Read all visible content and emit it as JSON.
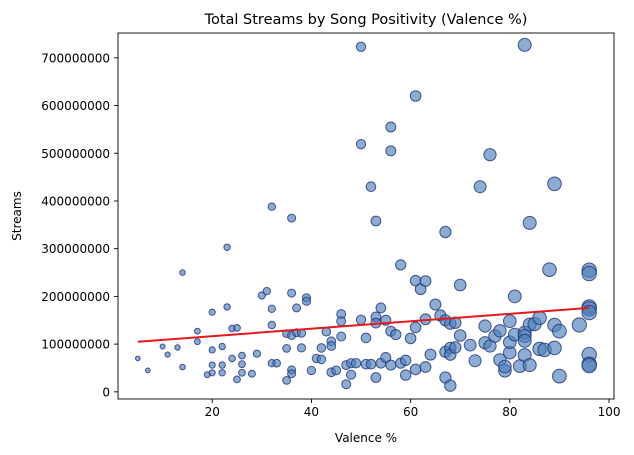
{
  "chart_data": {
    "type": "scatter",
    "title": "Total Streams by Song Positivity (Valence %)",
    "xlabel": "Valence %",
    "ylabel": "Streams",
    "xlim": [
      1,
      101
    ],
    "ylim": [
      -15000000,
      752000000
    ],
    "xticks": [
      20,
      40,
      60,
      80,
      100
    ],
    "xtick_labels": [
      "20",
      "40",
      "60",
      "80",
      "100"
    ],
    "yticks": [
      0,
      100000000,
      200000000,
      300000000,
      400000000,
      500000000,
      600000000,
      700000000
    ],
    "ytick_labels": [
      "0",
      "100000000",
      "200000000",
      "300000000",
      "400000000",
      "500000000",
      "600000000",
      "700000000"
    ],
    "grid": false,
    "legend": false,
    "colors": {
      "marker_fill": "#4f7fb8",
      "marker_edge": "#1f2f78",
      "trend_line": "#e31a1c"
    },
    "trend_line": {
      "x": [
        5,
        96
      ],
      "y": [
        105000000,
        176000000
      ]
    },
    "points": [
      {
        "x": 5,
        "y": 70000000
      },
      {
        "x": 7,
        "y": 45000000
      },
      {
        "x": 10,
        "y": 95000000
      },
      {
        "x": 11,
        "y": 78000000
      },
      {
        "x": 13,
        "y": 93000000
      },
      {
        "x": 14,
        "y": 250000000
      },
      {
        "x": 14,
        "y": 52000000
      },
      {
        "x": 17,
        "y": 127000000
      },
      {
        "x": 17,
        "y": 105000000
      },
      {
        "x": 19,
        "y": 36000000
      },
      {
        "x": 20,
        "y": 40000000
      },
      {
        "x": 20,
        "y": 167000000
      },
      {
        "x": 20,
        "y": 88000000
      },
      {
        "x": 20,
        "y": 56000000
      },
      {
        "x": 22,
        "y": 95000000
      },
      {
        "x": 22,
        "y": 56000000
      },
      {
        "x": 22,
        "y": 40000000
      },
      {
        "x": 23,
        "y": 178000000
      },
      {
        "x": 23,
        "y": 303000000
      },
      {
        "x": 24,
        "y": 133000000
      },
      {
        "x": 24,
        "y": 70000000
      },
      {
        "x": 25,
        "y": 26000000
      },
      {
        "x": 25,
        "y": 134000000
      },
      {
        "x": 26,
        "y": 76000000
      },
      {
        "x": 26,
        "y": 40000000
      },
      {
        "x": 26,
        "y": 58000000
      },
      {
        "x": 28,
        "y": 38000000
      },
      {
        "x": 29,
        "y": 80000000
      },
      {
        "x": 30,
        "y": 202000000
      },
      {
        "x": 31,
        "y": 211000000
      },
      {
        "x": 32,
        "y": 388000000
      },
      {
        "x": 32,
        "y": 174000000
      },
      {
        "x": 32,
        "y": 140000000
      },
      {
        "x": 32,
        "y": 60000000
      },
      {
        "x": 33,
        "y": 60000000
      },
      {
        "x": 35,
        "y": 24000000
      },
      {
        "x": 35,
        "y": 91000000
      },
      {
        "x": 35,
        "y": 122000000
      },
      {
        "x": 36,
        "y": 364000000
      },
      {
        "x": 36,
        "y": 207000000
      },
      {
        "x": 36,
        "y": 118000000
      },
      {
        "x": 36,
        "y": 46000000
      },
      {
        "x": 36,
        "y": 38000000
      },
      {
        "x": 37,
        "y": 176000000
      },
      {
        "x": 37,
        "y": 124000000
      },
      {
        "x": 38,
        "y": 123000000
      },
      {
        "x": 38,
        "y": 92000000
      },
      {
        "x": 39,
        "y": 197000000
      },
      {
        "x": 39,
        "y": 190000000
      },
      {
        "x": 40,
        "y": 45000000
      },
      {
        "x": 41,
        "y": 70000000
      },
      {
        "x": 42,
        "y": 68000000
      },
      {
        "x": 42,
        "y": 92000000
      },
      {
        "x": 43,
        "y": 126000000
      },
      {
        "x": 44,
        "y": 106000000
      },
      {
        "x": 44,
        "y": 96000000
      },
      {
        "x": 44,
        "y": 41000000
      },
      {
        "x": 45,
        "y": 45000000
      },
      {
        "x": 46,
        "y": 163000000
      },
      {
        "x": 46,
        "y": 148000000
      },
      {
        "x": 46,
        "y": 116000000
      },
      {
        "x": 47,
        "y": 16000000
      },
      {
        "x": 47,
        "y": 56000000
      },
      {
        "x": 48,
        "y": 60000000
      },
      {
        "x": 48,
        "y": 36000000
      },
      {
        "x": 49,
        "y": 60000000
      },
      {
        "x": 50,
        "y": 723000000
      },
      {
        "x": 50,
        "y": 519000000
      },
      {
        "x": 50,
        "y": 151000000
      },
      {
        "x": 51,
        "y": 113000000
      },
      {
        "x": 51,
        "y": 58000000
      },
      {
        "x": 52,
        "y": 430000000
      },
      {
        "x": 52,
        "y": 58000000
      },
      {
        "x": 53,
        "y": 358000000
      },
      {
        "x": 53,
        "y": 157000000
      },
      {
        "x": 53,
        "y": 144000000
      },
      {
        "x": 53,
        "y": 30000000
      },
      {
        "x": 54,
        "y": 176000000
      },
      {
        "x": 54,
        "y": 60000000
      },
      {
        "x": 55,
        "y": 150000000
      },
      {
        "x": 55,
        "y": 72000000
      },
      {
        "x": 56,
        "y": 555000000
      },
      {
        "x": 56,
        "y": 505000000
      },
      {
        "x": 56,
        "y": 127000000
      },
      {
        "x": 56,
        "y": 56000000
      },
      {
        "x": 57,
        "y": 120000000
      },
      {
        "x": 58,
        "y": 266000000
      },
      {
        "x": 58,
        "y": 60000000
      },
      {
        "x": 59,
        "y": 66000000
      },
      {
        "x": 59,
        "y": 35000000
      },
      {
        "x": 60,
        "y": 112000000
      },
      {
        "x": 61,
        "y": 620000000
      },
      {
        "x": 61,
        "y": 233000000
      },
      {
        "x": 61,
        "y": 135000000
      },
      {
        "x": 61,
        "y": 47000000
      },
      {
        "x": 62,
        "y": 215000000
      },
      {
        "x": 63,
        "y": 232000000
      },
      {
        "x": 63,
        "y": 152000000
      },
      {
        "x": 63,
        "y": 52000000
      },
      {
        "x": 64,
        "y": 78000000
      },
      {
        "x": 65,
        "y": 183000000
      },
      {
        "x": 66,
        "y": 160000000
      },
      {
        "x": 67,
        "y": 335000000
      },
      {
        "x": 67,
        "y": 150000000
      },
      {
        "x": 67,
        "y": 84000000
      },
      {
        "x": 67,
        "y": 30000000
      },
      {
        "x": 68,
        "y": 143000000
      },
      {
        "x": 68,
        "y": 92000000
      },
      {
        "x": 68,
        "y": 78000000
      },
      {
        "x": 68,
        "y": 13000000
      },
      {
        "x": 69,
        "y": 145000000
      },
      {
        "x": 69,
        "y": 93000000
      },
      {
        "x": 70,
        "y": 224000000
      },
      {
        "x": 70,
        "y": 118000000
      },
      {
        "x": 72,
        "y": 98000000
      },
      {
        "x": 73,
        "y": 65000000
      },
      {
        "x": 74,
        "y": 430000000
      },
      {
        "x": 75,
        "y": 138000000
      },
      {
        "x": 75,
        "y": 103000000
      },
      {
        "x": 76,
        "y": 497000000
      },
      {
        "x": 76,
        "y": 96000000
      },
      {
        "x": 77,
        "y": 117000000
      },
      {
        "x": 78,
        "y": 128000000
      },
      {
        "x": 78,
        "y": 67000000
      },
      {
        "x": 79,
        "y": 44000000
      },
      {
        "x": 79,
        "y": 53000000
      },
      {
        "x": 80,
        "y": 148000000
      },
      {
        "x": 80,
        "y": 82000000
      },
      {
        "x": 80,
        "y": 104000000
      },
      {
        "x": 81,
        "y": 200000000
      },
      {
        "x": 81,
        "y": 120000000
      },
      {
        "x": 82,
        "y": 54000000
      },
      {
        "x": 83,
        "y": 727000000
      },
      {
        "x": 83,
        "y": 124000000
      },
      {
        "x": 83,
        "y": 117000000
      },
      {
        "x": 83,
        "y": 107000000
      },
      {
        "x": 83,
        "y": 77000000
      },
      {
        "x": 84,
        "y": 354000000
      },
      {
        "x": 84,
        "y": 141000000
      },
      {
        "x": 84,
        "y": 56000000
      },
      {
        "x": 85,
        "y": 142000000
      },
      {
        "x": 86,
        "y": 155000000
      },
      {
        "x": 86,
        "y": 90000000
      },
      {
        "x": 87,
        "y": 88000000
      },
      {
        "x": 88,
        "y": 256000000
      },
      {
        "x": 89,
        "y": 436000000
      },
      {
        "x": 89,
        "y": 140000000
      },
      {
        "x": 89,
        "y": 92000000
      },
      {
        "x": 90,
        "y": 127000000
      },
      {
        "x": 90,
        "y": 33000000
      },
      {
        "x": 94,
        "y": 140000000
      },
      {
        "x": 96,
        "y": 255000000
      },
      {
        "x": 96,
        "y": 248000000
      },
      {
        "x": 96,
        "y": 178000000
      },
      {
        "x": 96,
        "y": 174000000
      },
      {
        "x": 96,
        "y": 166000000
      },
      {
        "x": 96,
        "y": 78000000
      },
      {
        "x": 96,
        "y": 58000000
      },
      {
        "x": 96,
        "y": 55000000
      }
    ]
  }
}
